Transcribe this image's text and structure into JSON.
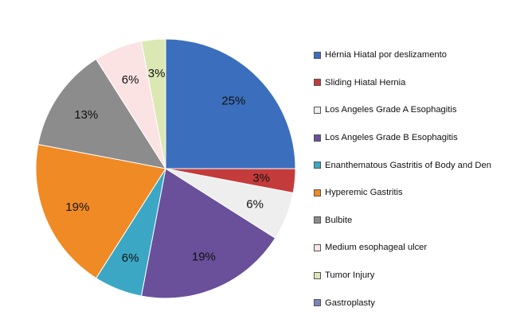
{
  "chart_data": {
    "type": "pie",
    "title": "",
    "legend_position": "right",
    "slices": [
      {
        "name": "Hérnia Hiatal por deslizamento",
        "value": 25,
        "label": "25%",
        "color": "#3b6fbd"
      },
      {
        "name": "Sliding Hiatal Hernia",
        "value": 3,
        "label": "3%",
        "color": "#c43b3b"
      },
      {
        "name": "Los Angeles Grade A Esophagitis",
        "value": 6,
        "label": "6%",
        "color": "#eeeeee"
      },
      {
        "name": "Los Angeles Grade B Esophagitis",
        "value": 19,
        "label": "19%",
        "color": "#6a4f9a"
      },
      {
        "name": "Enanthematous Gastritis of Body and Den",
        "value": 6,
        "label": "6%",
        "color": "#3ba7c4"
      },
      {
        "name": "Hyperemic Gastritis",
        "value": 19,
        "label": "19%",
        "color": "#f08a24"
      },
      {
        "name": "Bulbite",
        "value": 13,
        "label": "13%",
        "color": "#8c8c8c"
      },
      {
        "name": "Medium esophageal ulcer",
        "value": 6,
        "label": "6%",
        "color": "#fbe3e3"
      },
      {
        "name": "Tumor Injury",
        "value": 3,
        "label": "3%",
        "color": "#dbe8b4"
      },
      {
        "name": "Gastroplasty",
        "value": 0,
        "label": "",
        "color": "#7a86b8"
      }
    ]
  }
}
